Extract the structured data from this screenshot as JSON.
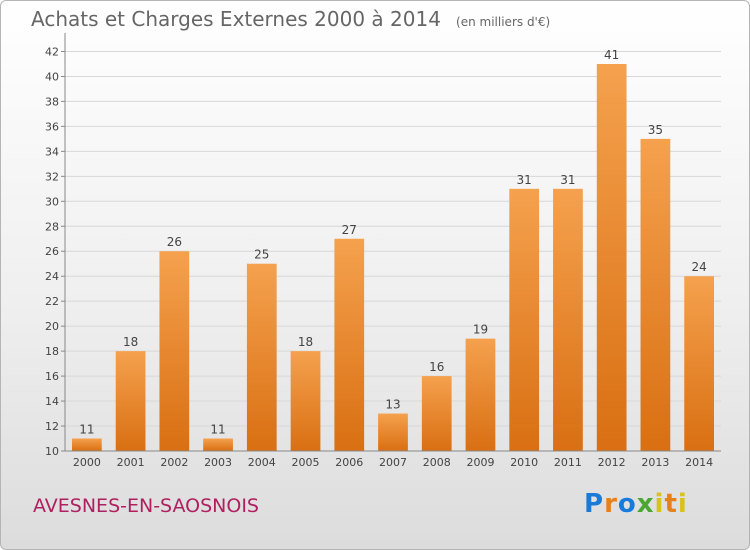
{
  "header": {
    "title": "Achats et Charges Externes 2000 à 2014",
    "unit": "(en milliers d'€)"
  },
  "footer": {
    "commune": "AVESNES-EN-SAOSNOIS",
    "logo_text": "Proxiti"
  },
  "colors": {
    "bar_top": "#f5a14e",
    "bar_bottom": "#d96f12",
    "commune_text": "#b02060"
  },
  "chart_data": {
    "type": "bar",
    "title": "Achats et Charges Externes 2000 à 2014",
    "subtitle": "(en milliers d'€)",
    "categories": [
      "2000",
      "2001",
      "2002",
      "2003",
      "2004",
      "2005",
      "2006",
      "2007",
      "2008",
      "2009",
      "2010",
      "2011",
      "2012",
      "2013",
      "2014"
    ],
    "values": [
      11,
      18,
      26,
      11,
      25,
      18,
      27,
      13,
      16,
      19,
      31,
      31,
      41,
      35,
      24
    ],
    "ylim": [
      10,
      43
    ],
    "yticks": [
      10,
      12,
      14,
      16,
      18,
      20,
      22,
      24,
      26,
      28,
      30,
      32,
      34,
      36,
      38,
      40,
      42
    ],
    "grid": true,
    "legend": "none"
  }
}
